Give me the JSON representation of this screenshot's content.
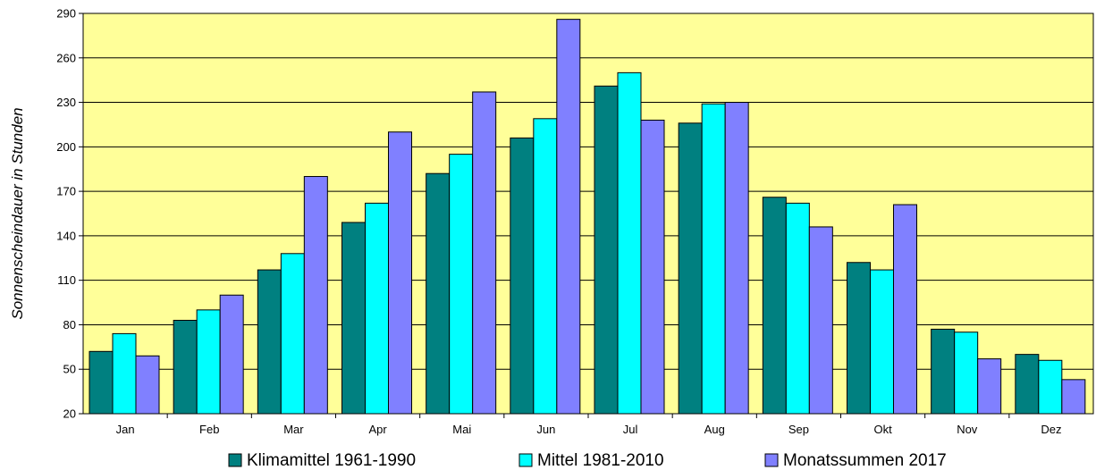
{
  "chart_data": {
    "type": "bar",
    "ylabel": "Sonnenscheindauer in Stunden",
    "xlabel": "",
    "ylim": [
      20,
      290
    ],
    "yticks": [
      20,
      50,
      80,
      110,
      140,
      170,
      200,
      230,
      260,
      290
    ],
    "grid": true,
    "legend_position": "bottom",
    "background_color": "#ffff99",
    "categories": [
      "Jan",
      "Feb",
      "Mar",
      "Apr",
      "Mai",
      "Jun",
      "Jul",
      "Aug",
      "Sep",
      "Okt",
      "Nov",
      "Dez"
    ],
    "series": [
      {
        "name": "Klimamittel 1961-1990",
        "color": "#008080",
        "values": [
          62,
          83,
          117,
          149,
          182,
          206,
          241,
          216,
          166,
          122,
          77,
          60
        ]
      },
      {
        "name": "Mittel 1981-2010",
        "color": "#00ffff",
        "values": [
          74,
          90,
          128,
          162,
          195,
          219,
          250,
          229,
          162,
          117,
          75,
          56
        ]
      },
      {
        "name": "Monatssummen 2017",
        "color": "#8080ff",
        "values": [
          59,
          100,
          180,
          210,
          237,
          286,
          218,
          230,
          146,
          161,
          57,
          43
        ]
      }
    ]
  }
}
